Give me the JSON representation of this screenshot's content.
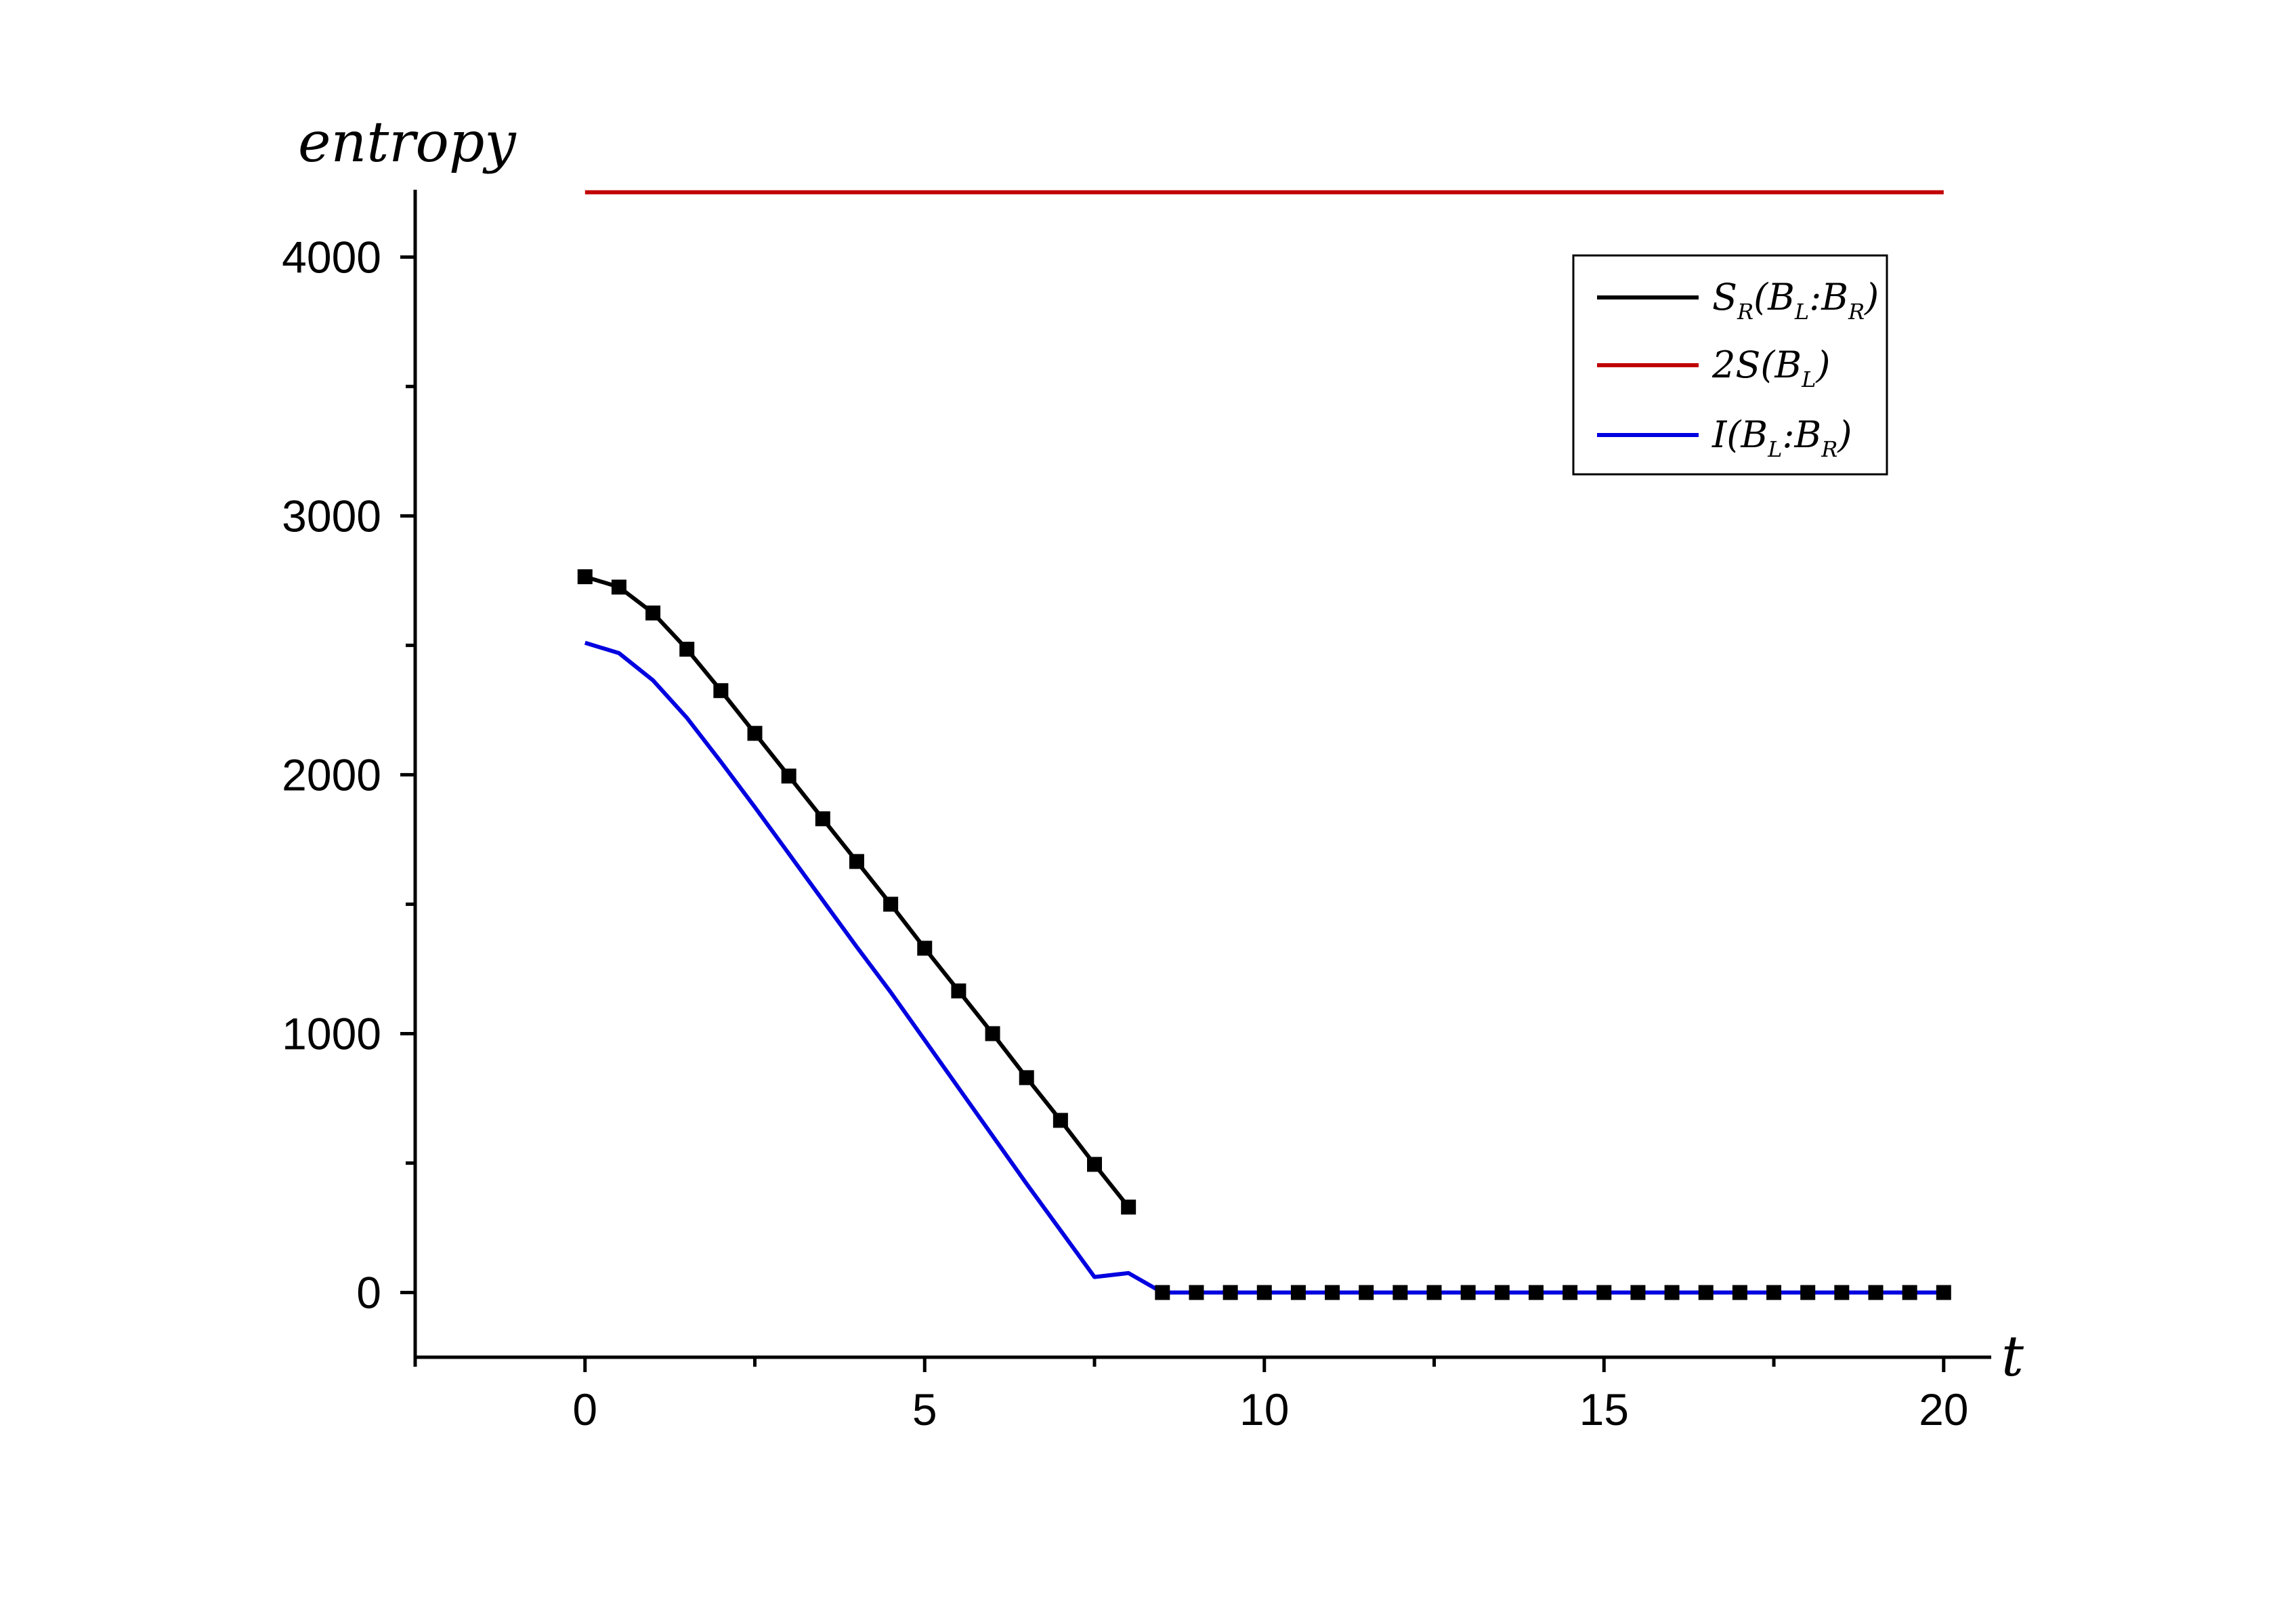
{
  "chart_data": {
    "type": "line",
    "xlabel": "t",
    "ylabel": "entropy",
    "xlim": [
      -2.5,
      20.7
    ],
    "ylim": [
      -250,
      4260
    ],
    "xticks": [
      0,
      5,
      10,
      15,
      20
    ],
    "xtick_labels": [
      "0",
      "5",
      "10",
      "15",
      "20"
    ],
    "yticks": [
      0,
      1000,
      2000,
      3000,
      4000
    ],
    "ytick_labels": [
      "0",
      "1000",
      "2000",
      "3000",
      "4000"
    ],
    "legend_position": "top-right",
    "series": [
      {
        "key": "SR",
        "legend": {
          "main": "S",
          "sub1": "R",
          "text2": "(B",
          "sub2": "L",
          "text3": ":B",
          "sub3": "R",
          "text4": ")"
        },
        "color": "#000000",
        "marker": "square",
        "segments": [
          {
            "x": [
              0,
              0.5,
              1,
              1.5,
              2,
              2.5,
              3,
              3.5,
              4,
              4.5,
              5,
              5.5,
              6,
              6.5,
              7,
              7.5,
              8
            ],
            "y": [
              2765,
              2725,
              2625,
              2485,
              2325,
              2160,
              1995,
              1830,
              1665,
              1500,
              1330,
              1165,
              1000,
              830,
              665,
              495,
              330
            ]
          },
          {
            "x": [
              8.5,
              9,
              9.5,
              10,
              10.5,
              11,
              11.5,
              12,
              12.5,
              13,
              13.5,
              14,
              14.5,
              15,
              15.5,
              16,
              16.5,
              17,
              17.5,
              18,
              18.5,
              19,
              19.5,
              20
            ],
            "y": [
              0,
              0,
              0,
              0,
              0,
              0,
              0,
              0,
              0,
              0,
              0,
              0,
              0,
              0,
              0,
              0,
              0,
              0,
              0,
              0,
              0,
              0,
              0,
              0
            ]
          }
        ]
      },
      {
        "key": "2S",
        "legend": {
          "main": "2S(B",
          "sub1": "L",
          "text2": ")"
        },
        "color": "#c00000",
        "marker": "none",
        "segments": [
          {
            "x": [
              0,
              20
            ],
            "y": [
              4250,
              4250
            ]
          }
        ]
      },
      {
        "key": "I",
        "legend": {
          "main": "I(B",
          "sub1": "L",
          "text2": ":B",
          "sub2": "R",
          "text3": ")"
        },
        "color": "#0000e0",
        "marker": "none",
        "segments": [
          {
            "x": [
              0,
              0.5,
              1,
              1.5,
              2,
              2.5,
              3,
              3.5,
              4,
              4.5,
              5,
              5.5,
              6,
              6.5,
              7,
              7.5,
              8,
              8.5,
              9,
              10,
              12,
              14,
              16,
              18,
              20
            ],
            "y": [
              2510,
              2470,
              2365,
              2220,
              2050,
              1875,
              1695,
              1515,
              1335,
              1160,
              975,
              790,
              605,
              420,
              240,
              60,
              75,
              0,
              0,
              0,
              0,
              0,
              0,
              0,
              0
            ]
          }
        ]
      }
    ]
  }
}
